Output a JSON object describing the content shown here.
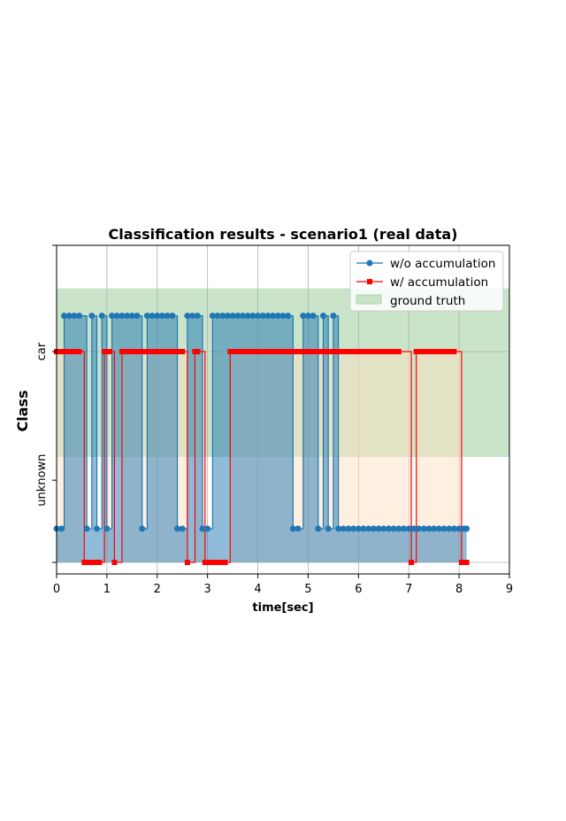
{
  "chart_data": {
    "type": "line",
    "title": "Classification results - scenario1 (real data)",
    "xlabel": "time[sec]",
    "ylabel": "Class",
    "xlim": [
      0,
      9
    ],
    "x_ticks": [
      0,
      1,
      2,
      3,
      4,
      5,
      6,
      7,
      8,
      9
    ],
    "y_categories": [
      {
        "label": "unknown",
        "value": 0
      },
      {
        "label": "car",
        "value": 1
      }
    ],
    "grid": true,
    "legend_position": "top-right",
    "ground_truth_label": "ground truth",
    "ground_truth_band": {
      "y_min": 0.5,
      "y_max": 1.3
    },
    "series": [
      {
        "name": "w/o accumulation",
        "color": "#1f77b4",
        "marker": "circle",
        "step": true,
        "fill_color": "#1f77b4",
        "fill_opacity": 0.5,
        "x": [
          0.0,
          0.1,
          0.15,
          0.25,
          0.35,
          0.45,
          0.6,
          0.7,
          0.8,
          0.9,
          1.0,
          1.1,
          1.2,
          1.3,
          1.4,
          1.5,
          1.6,
          1.7,
          1.8,
          1.9,
          2.0,
          2.1,
          2.2,
          2.3,
          2.4,
          2.5,
          2.6,
          2.7,
          2.8,
          2.9,
          3.0,
          3.1,
          3.2,
          3.3,
          3.4,
          3.5,
          3.6,
          3.7,
          3.8,
          3.9,
          4.0,
          4.1,
          4.2,
          4.3,
          4.4,
          4.5,
          4.6,
          4.7,
          4.8,
          4.9,
          5.0,
          5.1,
          5.2,
          5.3,
          5.4,
          5.5,
          5.6,
          5.7,
          5.8,
          5.9,
          6.0,
          6.1,
          6.2,
          6.3,
          6.4,
          6.5,
          6.6,
          6.7,
          6.8,
          6.9,
          7.0,
          7.1,
          7.2,
          7.3,
          7.4,
          7.5,
          7.6,
          7.7,
          7.8,
          7.9,
          8.0,
          8.1,
          8.15
        ],
        "y": [
          0.16,
          0.16,
          1.17,
          1.17,
          1.17,
          1.17,
          0.16,
          1.17,
          0.16,
          1.17,
          0.16,
          1.17,
          1.17,
          1.17,
          1.17,
          1.17,
          1.17,
          0.16,
          1.17,
          1.17,
          1.17,
          1.17,
          1.17,
          1.17,
          0.16,
          0.16,
          1.17,
          1.17,
          1.17,
          0.16,
          0.16,
          1.17,
          1.17,
          1.17,
          1.17,
          1.17,
          1.17,
          1.17,
          1.17,
          1.17,
          1.17,
          1.17,
          1.17,
          1.17,
          1.17,
          1.17,
          1.17,
          0.16,
          0.16,
          1.17,
          1.17,
          1.17,
          0.16,
          1.17,
          0.16,
          1.17,
          0.16,
          0.16,
          0.16,
          0.16,
          0.16,
          0.16,
          0.16,
          0.16,
          0.16,
          0.16,
          0.16,
          0.16,
          0.16,
          0.16,
          0.16,
          0.16,
          0.16,
          0.16,
          0.16,
          0.16,
          0.16,
          0.16,
          0.16,
          0.16,
          0.16,
          0.16,
          0.16
        ]
      },
      {
        "name": "w/ accumulation",
        "color": "#ff0000",
        "marker": "square",
        "step": true,
        "fill_color": "#ffdfc2",
        "fill_opacity": 0.5,
        "x": [
          0.0,
          0.05,
          0.1,
          0.15,
          0.2,
          0.25,
          0.3,
          0.35,
          0.4,
          0.45,
          0.55,
          0.6,
          0.65,
          0.7,
          0.75,
          0.8,
          0.85,
          0.95,
          1.0,
          1.05,
          1.15,
          1.3,
          1.35,
          1.4,
          1.45,
          1.5,
          1.55,
          1.6,
          1.65,
          1.7,
          1.75,
          1.8,
          1.85,
          1.9,
          1.95,
          2.0,
          2.05,
          2.1,
          2.15,
          2.2,
          2.25,
          2.3,
          2.35,
          2.4,
          2.45,
          2.5,
          2.6,
          2.75,
          2.8,
          2.95,
          3.0,
          3.05,
          3.1,
          3.15,
          3.2,
          3.25,
          3.3,
          3.35,
          3.45,
          3.5,
          3.55,
          3.6,
          3.65,
          3.7,
          3.75,
          3.8,
          3.85,
          3.9,
          3.95,
          4.0,
          4.05,
          4.1,
          4.15,
          4.2,
          4.25,
          4.35,
          4.4,
          4.45,
          4.5,
          4.55,
          4.6,
          4.65,
          4.7,
          4.75,
          4.8,
          4.85,
          4.9,
          4.95,
          5.0,
          5.05,
          5.1,
          5.15,
          5.2,
          5.25,
          5.3,
          5.35,
          5.4,
          5.45,
          5.5,
          5.55,
          5.6,
          5.65,
          5.7,
          5.75,
          5.8,
          5.85,
          5.9,
          5.95,
          6.0,
          6.05,
          6.1,
          6.15,
          6.2,
          6.25,
          6.3,
          6.35,
          6.4,
          6.45,
          6.5,
          6.55,
          6.6,
          6.65,
          6.7,
          6.75,
          6.8,
          7.05,
          7.15,
          7.2,
          7.25,
          7.3,
          7.35,
          7.4,
          7.45,
          7.5,
          7.55,
          7.6,
          7.65,
          7.7,
          7.75,
          7.8,
          7.85,
          7.9,
          8.05,
          8.1,
          8.15
        ],
        "y": [
          1.0,
          1.0,
          1.0,
          1.0,
          1.0,
          1.0,
          1.0,
          1.0,
          1.0,
          1.0,
          0.0,
          0.0,
          0.0,
          0.0,
          0.0,
          0.0,
          0.0,
          1.0,
          1.0,
          1.0,
          0.0,
          1.0,
          1.0,
          1.0,
          1.0,
          1.0,
          1.0,
          1.0,
          1.0,
          1.0,
          1.0,
          1.0,
          1.0,
          1.0,
          1.0,
          1.0,
          1.0,
          1.0,
          1.0,
          1.0,
          1.0,
          1.0,
          1.0,
          1.0,
          1.0,
          1.0,
          0.0,
          1.0,
          1.0,
          0.0,
          0.0,
          0.0,
          0.0,
          0.0,
          0.0,
          0.0,
          0.0,
          0.0,
          1.0,
          1.0,
          1.0,
          1.0,
          1.0,
          1.0,
          1.0,
          1.0,
          1.0,
          1.0,
          1.0,
          1.0,
          1.0,
          1.0,
          1.0,
          1.0,
          1.0,
          1.0,
          1.0,
          1.0,
          1.0,
          1.0,
          1.0,
          1.0,
          1.0,
          1.0,
          1.0,
          1.0,
          1.0,
          1.0,
          1.0,
          1.0,
          1.0,
          1.0,
          1.0,
          1.0,
          1.0,
          1.0,
          1.0,
          1.0,
          1.0,
          1.0,
          1.0,
          1.0,
          1.0,
          1.0,
          1.0,
          1.0,
          1.0,
          1.0,
          1.0,
          1.0,
          1.0,
          1.0,
          1.0,
          1.0,
          1.0,
          1.0,
          1.0,
          1.0,
          1.0,
          1.0,
          1.0,
          1.0,
          1.0,
          1.0,
          1.0,
          0.0,
          1.0,
          1.0,
          1.0,
          1.0,
          1.0,
          1.0,
          1.0,
          1.0,
          1.0,
          1.0,
          1.0,
          1.0,
          1.0,
          1.0,
          1.0,
          1.0,
          0.0,
          0.0,
          0.0
        ]
      }
    ]
  },
  "colors": {
    "ground_truth_fill": "#c9e4c9",
    "ground_truth_edge": "#a8d5a8",
    "grid": "#b0b0b0"
  }
}
